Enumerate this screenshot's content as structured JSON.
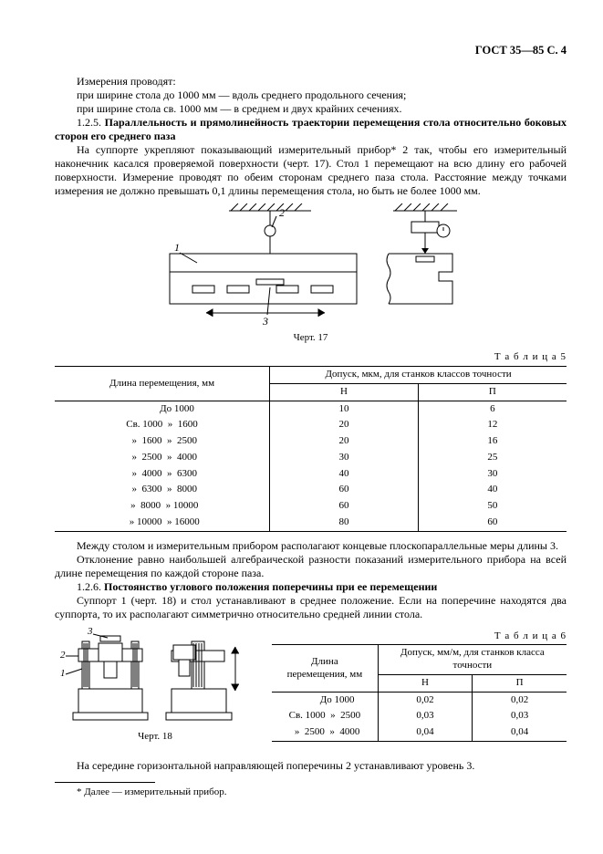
{
  "header": "ГОСТ 35—85 С. 4",
  "para1": "Измерения проводят:",
  "para2": "при ширине стола до 1000 мм — вдоль среднего продольного сечения;",
  "para3": "при ширине стола св. 1000 мм — в среднем и двух крайних сечениях.",
  "clause125_num": "1.2.5.",
  "clause125_title": "Параллельность и прямолинейность траектории перемещения стола относительно боковых сторон его среднего паза",
  "para125_body": "На суппорте укрепляют показывающий измерительный прибор* 2 так, чтобы его измерительный наконечник касался проверяемой поверхности (черт. 17). Стол 1 перемещают на всю длину его рабочей поверхности. Измерение проводят по обеим сторонам среднего паза стола. Расстояние между точками измерения не должно превышать 0,1 длины перемещения стола, но быть не более 1000 мм.",
  "figure17": {
    "caption": "Черт. 17",
    "labels": {
      "l1": "1",
      "l2": "2",
      "l3": "3"
    },
    "colors": {
      "stroke": "#000000",
      "fill": "#ffffff",
      "hatch": "#000000"
    }
  },
  "table5": {
    "label": "Т а б л и ц а  5",
    "col1_header": "Длина перемещения, мм",
    "col2_header": "Допуск, мкм, для станков классов точности",
    "sub_h": "Н",
    "sub_p": "П",
    "rows": [
      {
        "range": "            До 1000",
        "h": "10",
        "p": "6"
      },
      {
        "range": "Св. 1000  »  1600",
        "h": "20",
        "p": "12"
      },
      {
        "range": "  »  1600  »  2500",
        "h": "20",
        "p": "16"
      },
      {
        "range": "  »  2500  »  4000",
        "h": "30",
        "p": "25"
      },
      {
        "range": "  »  4000  »  6300",
        "h": "40",
        "p": "30"
      },
      {
        "range": "  »  6300  »  8000",
        "h": "60",
        "p": "40"
      },
      {
        "range": "  »  8000  » 10000",
        "h": "60",
        "p": "50"
      },
      {
        "range": "  » 10000  » 16000",
        "h": "80",
        "p": "60"
      }
    ]
  },
  "para_after_t5a": "Между столом и измерительным прибором располагают концевые плоскопараллельные меры длины 3.",
  "para_after_t5b": "Отклонение равно наибольшей алгебраической разности показаний измерительного прибора на всей длине перемещения по каждой стороне паза.",
  "clause126_num": "1.2.6.",
  "clause126_title": "Постоянство углового положения поперечины при ее перемещении",
  "para126_body": "Суппорт 1 (черт. 18) и стол устанавливают в среднее положение. Если на поперечине находятся два суппорта, то их располагают симметрично относительно средней линии стола.",
  "figure18": {
    "caption": "Черт. 18",
    "labels": {
      "l1": "1",
      "l2": "2",
      "l3": "3"
    }
  },
  "table6": {
    "label": "Т а б л и ц а  6",
    "col1_header": "Длина\nперемещения, мм",
    "col2_header": "Допуск, мм/м, для станков класса точности",
    "sub_h": "Н",
    "sub_p": "П",
    "rows": [
      {
        "range": "          До 1000",
        "h": "0,02",
        "p": "0,02"
      },
      {
        "range": "Св. 1000  »  2500",
        "h": "0,03",
        "p": "0,03"
      },
      {
        "range": "  »  2500  »  4000",
        "h": "0,04",
        "p": "0,04"
      }
    ]
  },
  "para_after_t6": "На середине горизонтальной направляющей поперечины 2 устанавливают уровень 3.",
  "footnote": "* Далее — измерительный прибор."
}
